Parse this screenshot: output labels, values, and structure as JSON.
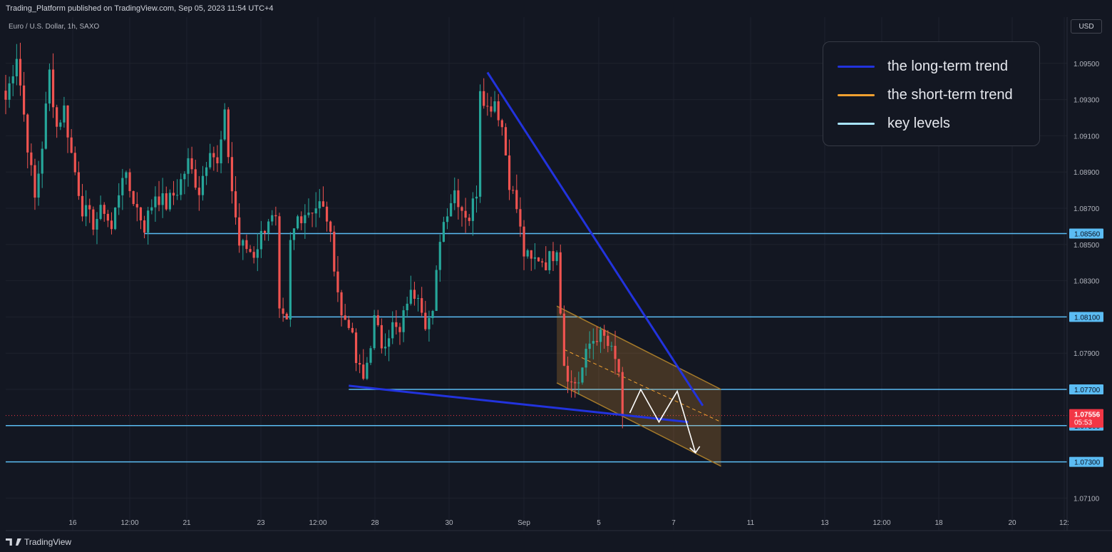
{
  "header": {
    "publish_text": "Trading_Platform published on TradingView.com, Sep 05, 2023 11:54 UTC+4"
  },
  "symbol_label": "Euro / U.S. Dollar, 1h, SAXO",
  "currency_button": "USD",
  "footer": {
    "brand": "TradingView"
  },
  "colors": {
    "background": "#131722",
    "up_candle": "#26a69a",
    "down_candle": "#ef5350",
    "long_trend": "#2233dd",
    "short_trend": "#f0a030",
    "key_levels": "#5bbcf3",
    "last_price": "#f23645"
  },
  "legend": {
    "items": [
      {
        "label": "the long-term trend",
        "color": "#2233dd"
      },
      {
        "label": "the short-term trend",
        "color": "#f0a030"
      },
      {
        "label": "key levels",
        "color": "#a8e4ff"
      }
    ]
  },
  "chart_data": {
    "type": "candlestick",
    "instrument": "Euro / U.S. Dollar",
    "timeframe": "1h",
    "source": "SAXO",
    "ylim": [
      1.07,
      1.097
    ],
    "y_ticks": [
      "1.07100",
      "1.07300",
      "1.07500",
      "1.07700",
      "1.07900",
      "1.08100",
      "1.08300",
      "1.08500",
      "1.08700",
      "1.08900",
      "1.09100",
      "1.09300",
      "1.09500"
    ],
    "x_ticks": [
      "16",
      "12:00",
      "21",
      "23",
      "12:00",
      "28",
      "30",
      "Sep",
      "5",
      "7",
      "11",
      "13",
      "12:00",
      "18",
      "20",
      "12:"
    ],
    "close_path": [
      [
        0,
        1.093
      ],
      [
        3,
        1.0955
      ],
      [
        6,
        1.0905
      ],
      [
        8,
        1.0875
      ],
      [
        10,
        1.0905
      ],
      [
        12,
        1.0945
      ],
      [
        14,
        1.0915
      ],
      [
        16,
        1.0925
      ],
      [
        18,
        1.09
      ],
      [
        21,
        1.087
      ],
      [
        24,
        1.0862
      ],
      [
        27,
        1.087
      ],
      [
        29,
        1.0858
      ],
      [
        32,
        1.089
      ],
      [
        35,
        1.0875
      ],
      [
        38,
        1.086
      ],
      [
        41,
        1.0878
      ],
      [
        44,
        1.0872
      ],
      [
        47,
        1.088
      ],
      [
        50,
        1.0895
      ],
      [
        53,
        1.088
      ],
      [
        56,
        1.0905
      ],
      [
        58,
        1.0893
      ],
      [
        60,
        1.092
      ],
      [
        62,
        1.088
      ],
      [
        64,
        1.085
      ],
      [
        66,
        1.0848
      ],
      [
        68,
        1.0845
      ],
      [
        70,
        1.0855
      ],
      [
        72,
        1.0865
      ],
      [
        74,
        1.0862
      ],
      [
        75,
        1.081
      ],
      [
        77,
        1.0805
      ],
      [
        78,
        1.085
      ],
      [
        80,
        1.0865
      ],
      [
        82,
        1.0868
      ],
      [
        84,
        1.087
      ],
      [
        86,
        1.0872
      ],
      [
        88,
        1.0865
      ],
      [
        90,
        1.084
      ],
      [
        92,
        1.081
      ],
      [
        94,
        1.0808
      ],
      [
        96,
        1.0785
      ],
      [
        98,
        1.0775
      ],
      [
        99,
        1.0785
      ],
      [
        101,
        1.0808
      ],
      [
        103,
        1.0795
      ],
      [
        106,
        1.0805
      ],
      [
        108,
        1.08
      ],
      [
        110,
        1.082
      ],
      [
        113,
        1.0825
      ],
      [
        115,
        1.0808
      ],
      [
        117,
        1.081
      ],
      [
        119,
        1.0855
      ],
      [
        121,
        1.087
      ],
      [
        123,
        1.088
      ],
      [
        125,
        1.087
      ],
      [
        127,
        1.0865
      ],
      [
        129,
        1.088
      ],
      [
        130,
        1.0938
      ],
      [
        132,
        1.0925
      ],
      [
        134,
        1.093
      ],
      [
        136,
        1.0915
      ],
      [
        138,
        1.0885
      ],
      [
        140,
        1.087
      ],
      [
        142,
        1.0845
      ],
      [
        144,
        1.084
      ],
      [
        146,
        1.0843
      ],
      [
        148,
        1.084
      ],
      [
        150,
        1.0845
      ],
      [
        151,
        1.085
      ],
      [
        152,
        1.0815
      ],
      [
        153,
        1.0785
      ],
      [
        155,
        1.0773
      ],
      [
        157,
        1.0775
      ],
      [
        160,
        1.0795
      ],
      [
        162,
        1.08
      ],
      [
        164,
        1.0798
      ],
      [
        166,
        1.079
      ],
      [
        168,
        1.078
      ],
      [
        169,
        1.0756
      ]
    ],
    "long_term_trend_lines": [
      {
        "from": [
          132,
          1.0945
        ],
        "to": [
          191,
          1.0761
        ]
      },
      {
        "from": [
          94,
          1.0772
        ],
        "to": [
          187,
          1.0752
        ]
      }
    ],
    "short_term_channel": {
      "upper": [
        [
          151,
          1.0816
        ],
        [
          196,
          1.077
        ]
      ],
      "lower": [
        [
          151,
          1.07736
        ],
        [
          196,
          1.07276
        ]
      ],
      "midline": [
        [
          153,
          1.0792
        ],
        [
          196,
          1.0752
        ]
      ]
    },
    "projection_path": [
      [
        171,
        1.0757
      ],
      [
        174,
        1.077
      ],
      [
        179,
        1.0752
      ],
      [
        184,
        1.0769
      ],
      [
        189,
        1.0735
      ]
    ],
    "key_levels": [
      {
        "value": "1.08560",
        "start_x": 38
      },
      {
        "value": "1.08100",
        "start_x": 76
      },
      {
        "value": "1.07700",
        "start_x": 94
      },
      {
        "value": "1.07500",
        "start_x": 0
      },
      {
        "value": "1.07300",
        "start_x": 0
      }
    ],
    "last_price": {
      "value": "1.07556",
      "countdown": "05:53"
    }
  }
}
